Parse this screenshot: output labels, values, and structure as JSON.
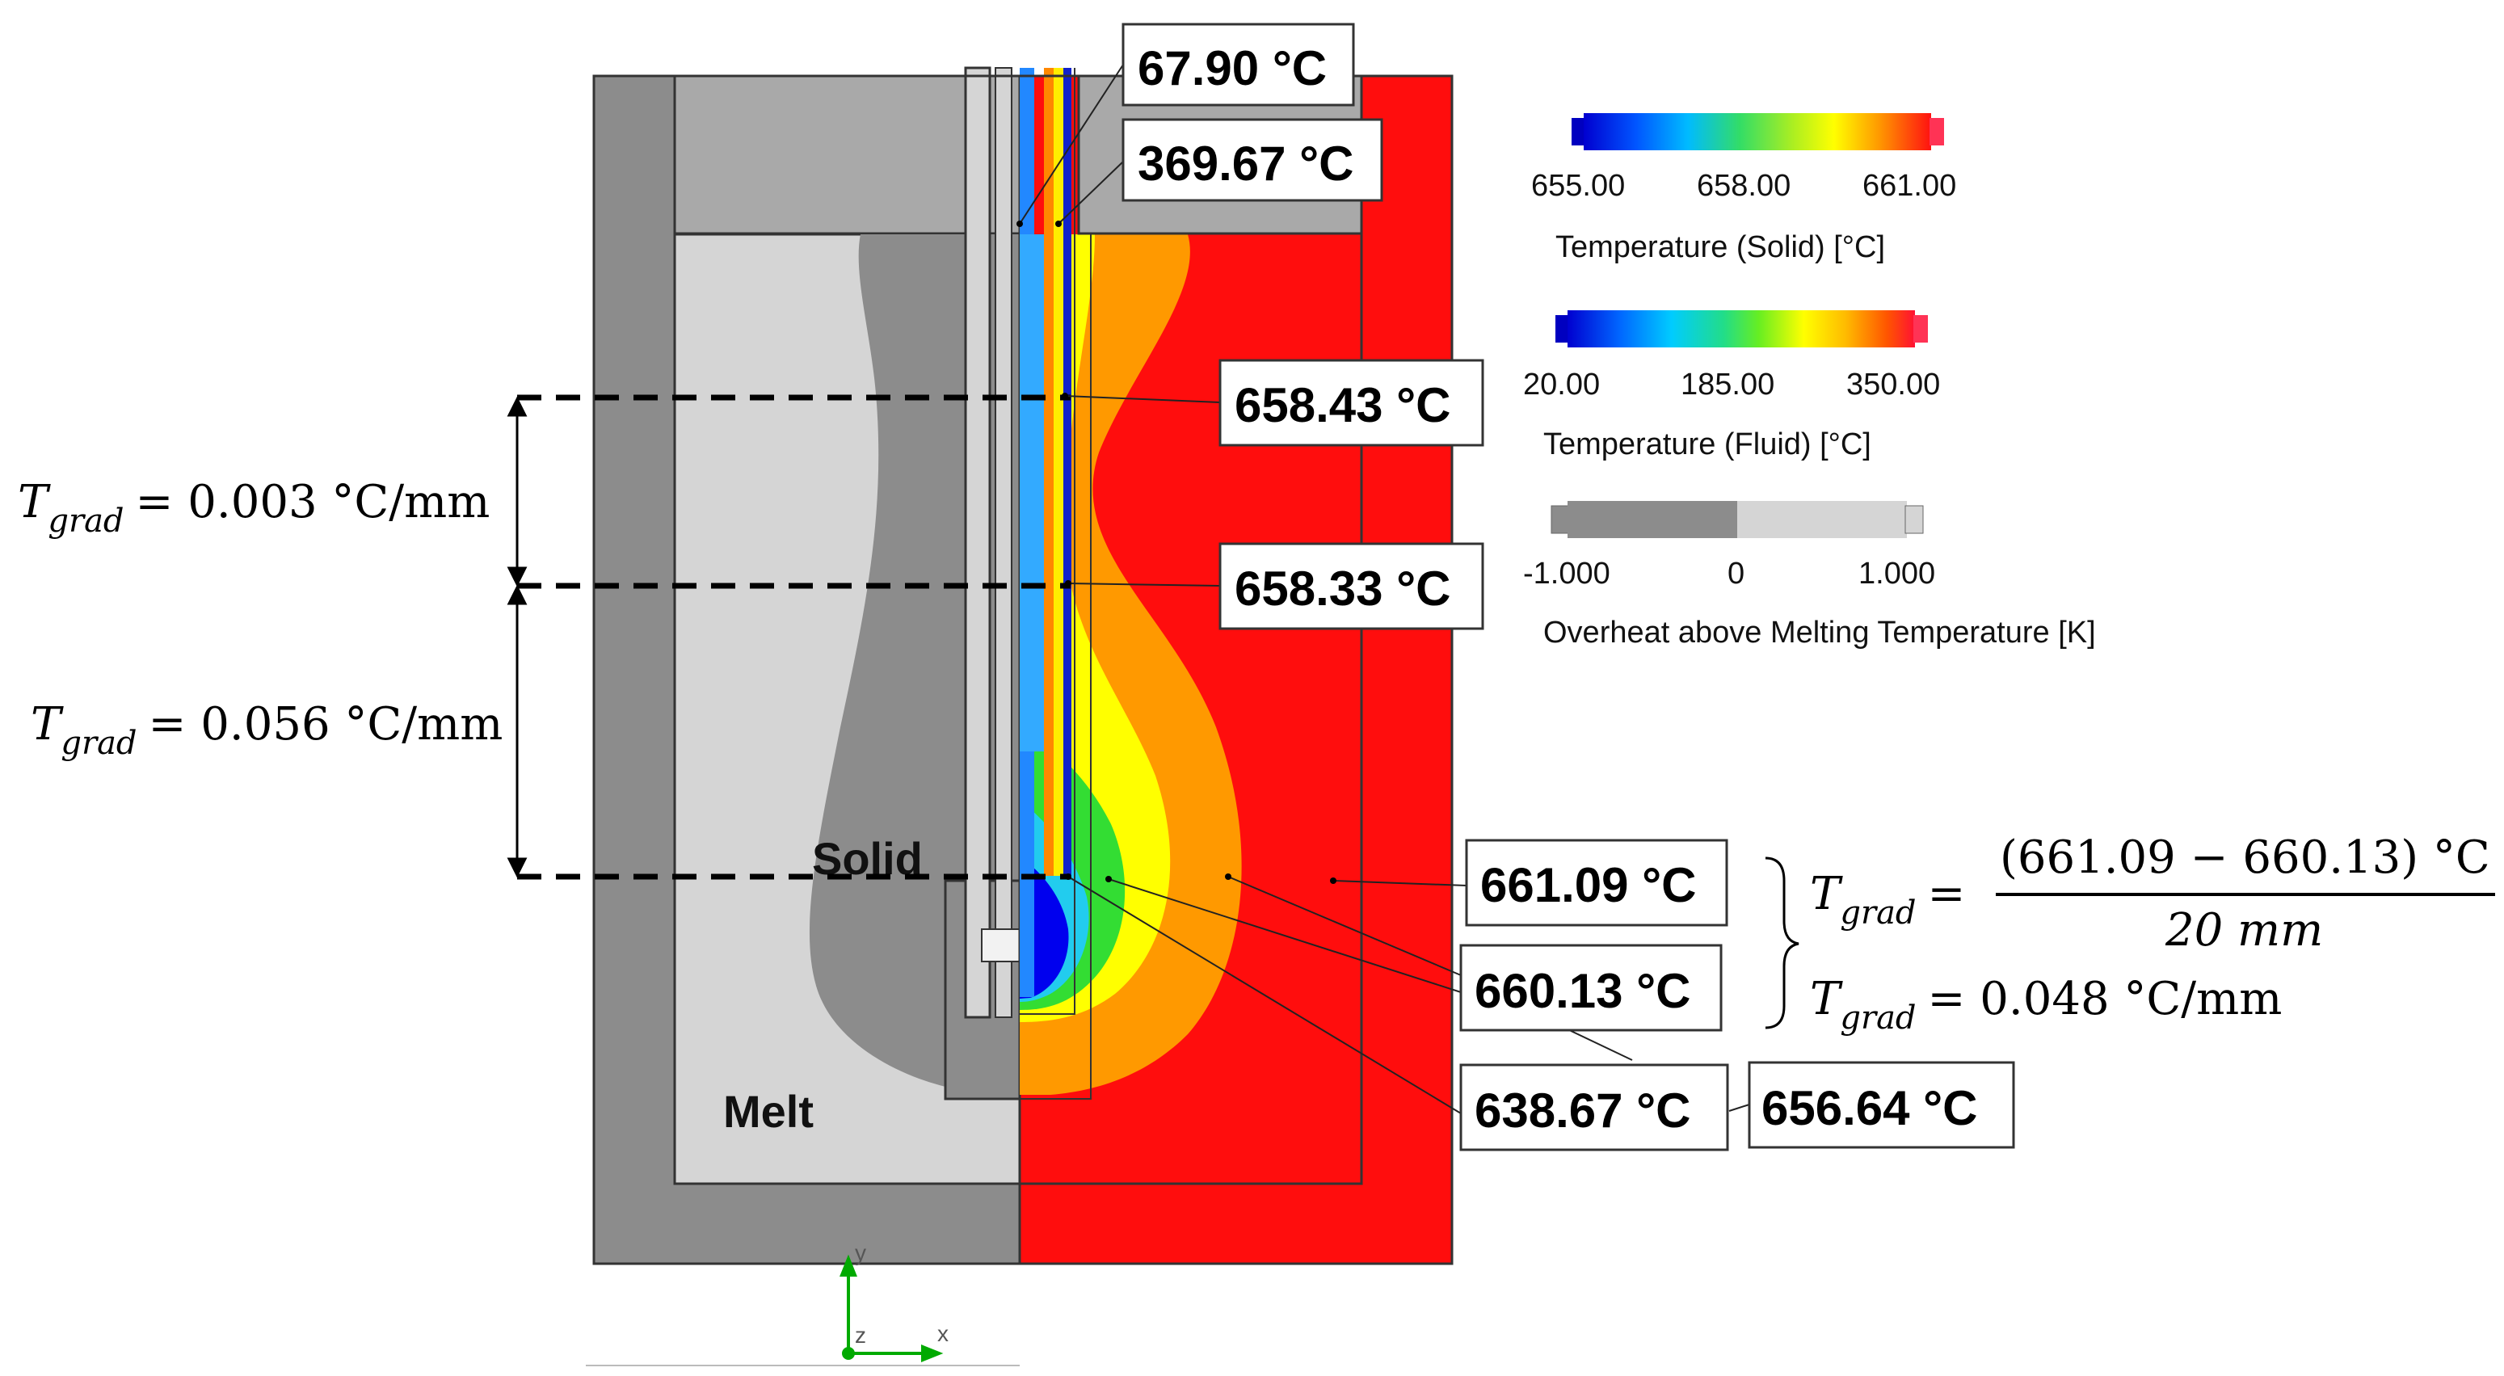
{
  "region_labels": {
    "solid": "Solid",
    "melt": "Melt"
  },
  "probes": [
    {
      "id": "t1",
      "text": "67.90 °C"
    },
    {
      "id": "t2",
      "text": "369.67 °C"
    },
    {
      "id": "t3",
      "text": "658.43 °C"
    },
    {
      "id": "t4",
      "text": "658.33 °C"
    },
    {
      "id": "t5",
      "text": "661.09 °C"
    },
    {
      "id": "t6",
      "text": "660.13 °C"
    },
    {
      "id": "t7",
      "text": "638.67 °C"
    },
    {
      "id": "t8",
      "text": "656.64 °C"
    }
  ],
  "gradients": {
    "symbol": "T",
    "subscript": "grad",
    "upper_value": "= 0.003 °C/mm",
    "lower_value": "= 0.056 °C/mm",
    "formula_numerator": "(661.09  − 660.13) °C",
    "formula_denominator": "20 mm",
    "result_value": "= 0.048 °C/mm"
  },
  "legends": {
    "solid": {
      "ticks": [
        "655.00",
        "658.00",
        "661.00"
      ],
      "title": "Temperature (Solid) [°C]"
    },
    "fluid": {
      "ticks": [
        "20.00",
        "185.00",
        "350.00"
      ],
      "title": "Temperature (Fluid) [°C]"
    },
    "overheat": {
      "ticks": [
        "-1.000",
        "0",
        "1.000"
      ],
      "title": "Overheat above Melting Temperature [K]"
    }
  },
  "colors": {
    "melt_red": "#ff0d0d",
    "orange": "#ff9900",
    "yellow": "#ffff00",
    "green": "#33dd33",
    "cyan": "#22ccee",
    "blue": "#0000ee",
    "dark_gray": "#8c8c8c",
    "mid_gray": "#a9a9a9",
    "light_gray": "#d5d5d5",
    "axis_green": "#00aa00"
  },
  "axis": {
    "x": "x",
    "y": "y",
    "z": "z"
  }
}
